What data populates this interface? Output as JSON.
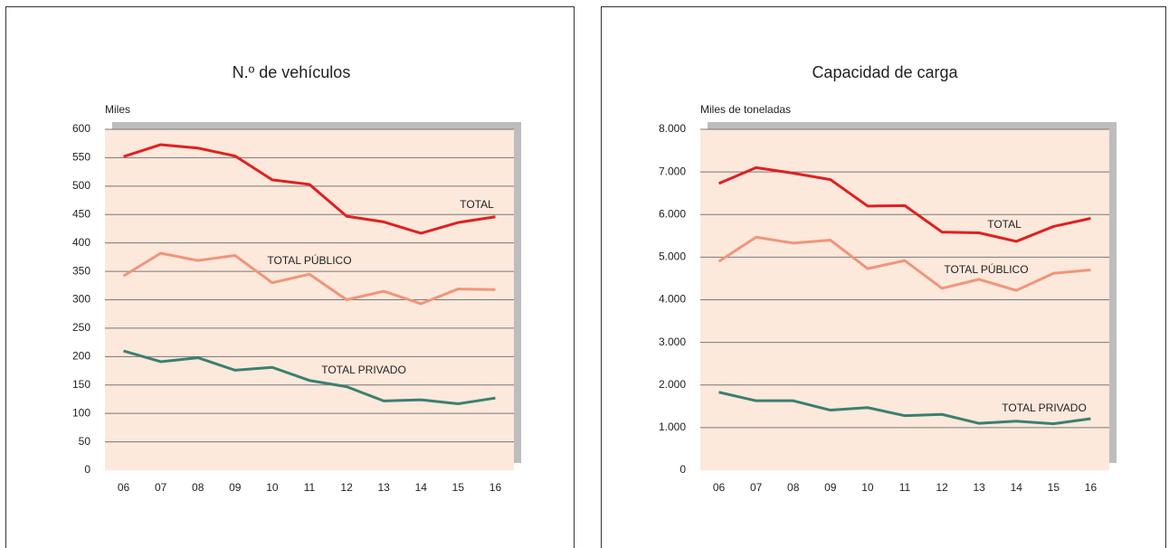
{
  "chart_data": [
    {
      "type": "line",
      "title": "N.º de vehículos",
      "y_label": "Miles",
      "categories": [
        "06",
        "07",
        "08",
        "09",
        "10",
        "11",
        "12",
        "13",
        "14",
        "15",
        "16"
      ],
      "ylim": [
        0,
        600
      ],
      "yticks": [
        0,
        50,
        100,
        150,
        200,
        250,
        300,
        350,
        400,
        450,
        500,
        550,
        600
      ],
      "grid": true,
      "series": [
        {
          "name": "TOTAL",
          "color": "#e0201f",
          "values": [
            552,
            573,
            567,
            553,
            511,
            503,
            447,
            437,
            417,
            436,
            446
          ]
        },
        {
          "name": "TOTAL PÚBLICO",
          "color": "#f0957a",
          "values": [
            342,
            382,
            369,
            378,
            330,
            345,
            300,
            315,
            293,
            319,
            318
          ]
        },
        {
          "name": "TOTAL PRIVADO",
          "color": "#3a8070",
          "values": [
            210,
            191,
            198,
            176,
            181,
            158,
            147,
            122,
            124,
            117,
            127
          ]
        }
      ]
    },
    {
      "type": "line",
      "title": "Capacidad de carga",
      "y_label": "Miles de toneladas",
      "categories": [
        "06",
        "07",
        "08",
        "09",
        "10",
        "11",
        "12",
        "13",
        "14",
        "15",
        "16"
      ],
      "ylim": [
        0,
        8000
      ],
      "yticks": [
        0,
        {
          "value": 1000,
          "label": "1.000"
        },
        {
          "value": 2000,
          "label": "2.000"
        },
        {
          "value": 3000,
          "label": "3.000"
        },
        {
          "value": 4000,
          "label": "4.000"
        },
        {
          "value": 5000,
          "label": "5.000"
        },
        {
          "value": 6000,
          "label": "6.000"
        },
        {
          "value": 7000,
          "label": "7.000"
        },
        {
          "value": 8000,
          "label": "8.000"
        }
      ],
      "grid": true,
      "series": [
        {
          "name": "TOTAL",
          "color": "#e0201f",
          "values": [
            6730,
            7100,
            6970,
            6820,
            6200,
            6210,
            5590,
            5570,
            5370,
            5720,
            5910
          ]
        },
        {
          "name": "TOTAL PÚBLICO",
          "color": "#f0957a",
          "values": [
            4900,
            5470,
            5330,
            5400,
            4730,
            4920,
            4270,
            4480,
            4220,
            4620,
            4700
          ]
        },
        {
          "name": "TOTAL PRIVADO",
          "color": "#3a8070",
          "values": [
            1830,
            1630,
            1630,
            1410,
            1470,
            1280,
            1310,
            1100,
            1150,
            1090,
            1210
          ]
        }
      ]
    }
  ]
}
